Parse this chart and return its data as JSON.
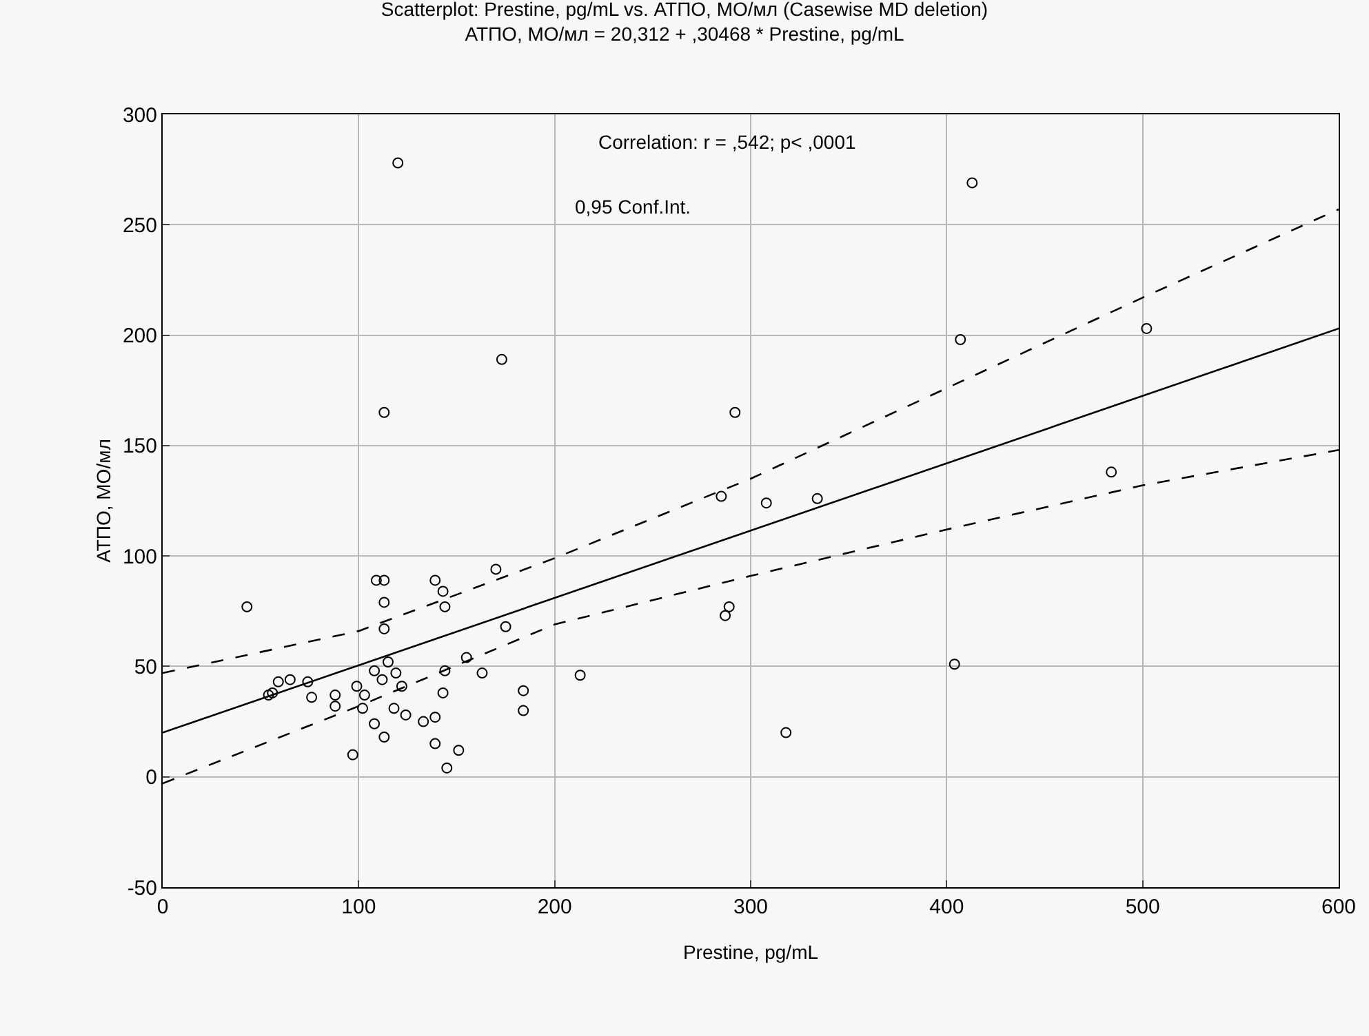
{
  "chart_data": {
    "type": "scatter",
    "title": "Scatterplot: Prestine, pg/mL vs. АТПО, МО/мл (Casewise MD deletion)",
    "subtitle": "АТПО, МО/мл = 20,312 + ,30468 * Prestine, pg/mL",
    "xlabel": "Prestine, pg/mL",
    "ylabel": "АТПО, МО/мл",
    "annotations": [
      "Correlation: r = ,542; p< ,0001",
      "0,95 Conf.Int."
    ],
    "xlim": [
      0,
      600
    ],
    "xticks": [
      0,
      100,
      200,
      300,
      400,
      500,
      600
    ],
    "ylim": [
      -50,
      300
    ],
    "yticks": [
      -50,
      0,
      50,
      100,
      150,
      200,
      250,
      300
    ],
    "grid": true,
    "legend": false,
    "series": [
      {
        "color": "#000000",
        "marker": "circle",
        "x": [
          43,
          109,
          113,
          113,
          113,
          139,
          143,
          144,
          170,
          175,
          59,
          65,
          54,
          56,
          74,
          76,
          88,
          88,
          99,
          103,
          102,
          108,
          112,
          115,
          119,
          122,
          118,
          124,
          108,
          113,
          97,
          133,
          139,
          139,
          151,
          145,
          143,
          144,
          155,
          163,
          184,
          184,
          213,
          120,
          173,
          113,
          413,
          407,
          502,
          292,
          285,
          308,
          334,
          484,
          289,
          287,
          404,
          318
        ],
        "values": [
          77,
          89,
          89,
          79,
          67,
          89,
          84,
          77,
          94,
          68,
          43,
          44,
          37,
          38,
          43,
          36,
          37,
          32,
          41,
          37,
          31,
          48,
          44,
          52,
          47,
          41,
          31,
          28,
          24,
          18,
          10,
          25,
          27,
          15,
          12,
          4,
          38,
          48,
          54,
          47,
          39,
          30,
          46,
          278,
          189,
          165,
          269,
          198,
          203,
          165,
          127,
          124,
          126,
          138,
          77,
          73,
          51,
          20
        ]
      },
      {
        "type": "line",
        "color": "#000000",
        "line_style": "solid",
        "marker": "none",
        "x": [
          0,
          600
        ],
        "values": [
          20,
          203
        ]
      },
      {
        "type": "line",
        "color": "#000000",
        "line_style": "dashed",
        "marker": "none",
        "x": [
          0,
          100,
          200,
          300,
          400,
          500,
          600
        ],
        "values": [
          47,
          66,
          99,
          135,
          176,
          217,
          257
        ]
      },
      {
        "type": "line",
        "color": "#000000",
        "line_style": "dashed",
        "marker": "none",
        "x": [
          0,
          100,
          200,
          300,
          400,
          500,
          600
        ],
        "values": [
          -3,
          32,
          69,
          91,
          112,
          132,
          148
        ]
      }
    ]
  }
}
